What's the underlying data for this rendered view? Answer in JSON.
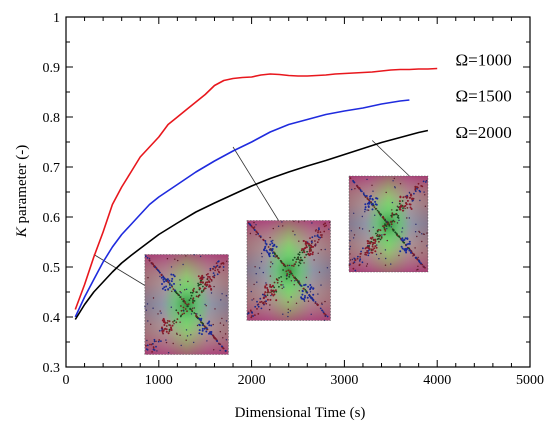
{
  "chart_data": {
    "type": "line",
    "title": "",
    "xlabel": "Dimensional Time (s)",
    "ylabel_italic": "K",
    "ylabel_rest": " parameter (-)",
    "xlim": [
      0,
      5000
    ],
    "ylim": [
      0.3,
      1.0
    ],
    "x_ticks": [
      0,
      1000,
      2000,
      3000,
      4000,
      5000
    ],
    "y_ticks": [
      0.3,
      0.4,
      0.5,
      0.6,
      0.7,
      0.8,
      0.9,
      1.0
    ],
    "x_tick_labels": [
      "0",
      "1000",
      "2000",
      "3000",
      "4000",
      "5000"
    ],
    "y_tick_labels": [
      "0.3",
      "0.4",
      "0.5",
      "0.6",
      "0.7",
      "0.8",
      "0.9",
      "1"
    ],
    "grid": false,
    "series": [
      {
        "name": "Ω=1000",
        "color": "#e8171d",
        "x": [
          100,
          200,
          300,
          400,
          500,
          600,
          700,
          800,
          900,
          1000,
          1100,
          1200,
          1300,
          1400,
          1500,
          1600,
          1700,
          1800,
          1900,
          2000,
          2100,
          2200,
          2300,
          2400,
          2500,
          2600,
          2700,
          2800,
          2900,
          3000,
          3100,
          3200,
          3300,
          3400,
          3500,
          3600,
          3700,
          3800,
          3900,
          4000
        ],
        "y": [
          0.415,
          0.465,
          0.52,
          0.57,
          0.625,
          0.66,
          0.69,
          0.72,
          0.74,
          0.76,
          0.785,
          0.8,
          0.815,
          0.83,
          0.845,
          0.863,
          0.873,
          0.877,
          0.879,
          0.88,
          0.884,
          0.886,
          0.885,
          0.883,
          0.882,
          0.882,
          0.883,
          0.884,
          0.886,
          0.887,
          0.888,
          0.889,
          0.89,
          0.892,
          0.894,
          0.895,
          0.895,
          0.896,
          0.896,
          0.897
        ]
      },
      {
        "name": "Ω=1500",
        "color": "#1f2bde",
        "x": [
          100,
          200,
          300,
          400,
          500,
          600,
          700,
          800,
          900,
          1000,
          1200,
          1400,
          1600,
          1800,
          2000,
          2200,
          2400,
          2600,
          2800,
          3000,
          3200,
          3400,
          3600,
          3700
        ],
        "y": [
          0.4,
          0.44,
          0.475,
          0.51,
          0.54,
          0.565,
          0.585,
          0.605,
          0.625,
          0.64,
          0.665,
          0.69,
          0.712,
          0.732,
          0.75,
          0.77,
          0.785,
          0.795,
          0.805,
          0.812,
          0.818,
          0.826,
          0.832,
          0.834
        ]
      },
      {
        "name": "Ω=2000",
        "color": "#000000",
        "x": [
          100,
          200,
          300,
          400,
          500,
          600,
          700,
          800,
          900,
          1000,
          1200,
          1400,
          1600,
          1800,
          2000,
          2200,
          2400,
          2600,
          2800,
          3000,
          3200,
          3400,
          3600,
          3800,
          3900
        ],
        "y": [
          0.395,
          0.425,
          0.45,
          0.47,
          0.49,
          0.508,
          0.523,
          0.537,
          0.551,
          0.565,
          0.588,
          0.61,
          0.628,
          0.645,
          0.662,
          0.677,
          0.69,
          0.702,
          0.713,
          0.725,
          0.737,
          0.749,
          0.759,
          0.769,
          0.773
        ]
      }
    ],
    "legend_labels": [
      {
        "text": "Ω=1000",
        "x": 4500,
        "y": 0.915
      },
      {
        "text": "Ω=1500",
        "x": 4500,
        "y": 0.843
      },
      {
        "text": "Ω=2000",
        "x": 4500,
        "y": 0.77
      }
    ],
    "insets": [
      {
        "name": "inset-1",
        "x0": 850,
        "x1": 1750,
        "y0": 0.325,
        "y1": 0.525,
        "pointer": {
          "x": 300,
          "y": 0.525,
          "tx": 1320,
          "ty": 0.41
        }
      },
      {
        "name": "inset-2",
        "x0": 1950,
        "x1": 2850,
        "y0": 0.393,
        "y1": 0.593,
        "pointer": {
          "x": 1800,
          "y": 0.74,
          "tx": 2400,
          "ty": 0.56
        }
      },
      {
        "name": "inset-3",
        "x0": 3050,
        "x1": 3900,
        "y0": 0.49,
        "y1": 0.682,
        "pointer": {
          "x": 3300,
          "y": 0.753,
          "tx": 3700,
          "ty": 0.682
        }
      }
    ]
  }
}
